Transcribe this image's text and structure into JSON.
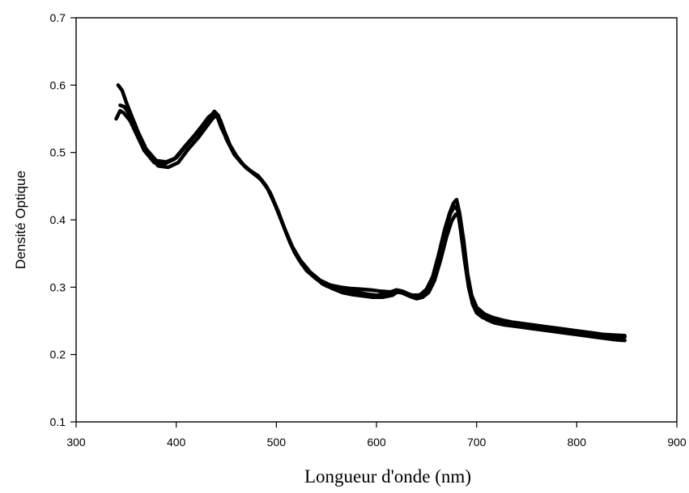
{
  "chart_data": {
    "type": "line",
    "title": "",
    "xlabel": "Longueur d'onde (nm)",
    "ylabel": "Densité Optique",
    "xlim": [
      300,
      900
    ],
    "ylim": [
      0.1,
      0.7
    ],
    "x_ticks": [
      "300",
      "400",
      "500",
      "600",
      "700",
      "800",
      "900"
    ],
    "y_ticks": [
      "0.1",
      "0.2",
      "0.3",
      "0.4",
      "0.5",
      "0.6",
      "0.7"
    ],
    "grid": false,
    "legend": "none",
    "line_color": "#000000",
    "series": [
      {
        "x": [
          342,
          346,
          350,
          356,
          362,
          370,
          380,
          390,
          400,
          410,
          420,
          428,
          434,
          438,
          442,
          446,
          450,
          458,
          466,
          474,
          482,
          490,
          498,
          506,
          514,
          522,
          530,
          540,
          550,
          560,
          570,
          580,
          590,
          600,
          610,
          618,
          624,
          630,
          636,
          642,
          648,
          654,
          660,
          666,
          670,
          674,
          678,
          681,
          684,
          688,
          692,
          696,
          700,
          706,
          712,
          720,
          730,
          740,
          750,
          760,
          770,
          780,
          790,
          800,
          810,
          820,
          830,
          840,
          848
        ],
        "y": [
          0.6,
          0.592,
          0.575,
          0.552,
          0.53,
          0.505,
          0.488,
          0.486,
          0.492,
          0.51,
          0.527,
          0.541,
          0.553,
          0.561,
          0.555,
          0.538,
          0.52,
          0.497,
          0.483,
          0.473,
          0.465,
          0.45,
          0.425,
          0.395,
          0.365,
          0.342,
          0.325,
          0.312,
          0.302,
          0.297,
          0.294,
          0.293,
          0.29,
          0.288,
          0.29,
          0.293,
          0.292,
          0.29,
          0.288,
          0.288,
          0.292,
          0.305,
          0.33,
          0.365,
          0.39,
          0.41,
          0.42,
          0.415,
          0.385,
          0.34,
          0.3,
          0.275,
          0.262,
          0.255,
          0.252,
          0.249,
          0.247,
          0.245,
          0.243,
          0.241,
          0.239,
          0.237,
          0.235,
          0.233,
          0.231,
          0.229,
          0.228,
          0.227,
          0.226
        ]
      },
      {
        "x": [
          344,
          348,
          352,
          358,
          364,
          372,
          382,
          392,
          402,
          412,
          422,
          430,
          436,
          440,
          444,
          448,
          454,
          462,
          470,
          478,
          486,
          494,
          502,
          510,
          518,
          526,
          536,
          546,
          556,
          566,
          576,
          586,
          596,
          606,
          616,
          622,
          628,
          634,
          640,
          646,
          652,
          658,
          664,
          670,
          675,
          679,
          682,
          686,
          690,
          694,
          698,
          704,
          710,
          718,
          728,
          738,
          748,
          758,
          768,
          778,
          788,
          798,
          808,
          818,
          828,
          838,
          848
        ],
        "y": [
          0.57,
          0.568,
          0.56,
          0.545,
          0.522,
          0.497,
          0.48,
          0.478,
          0.485,
          0.505,
          0.522,
          0.538,
          0.55,
          0.555,
          0.548,
          0.532,
          0.51,
          0.49,
          0.477,
          0.468,
          0.458,
          0.44,
          0.412,
          0.38,
          0.352,
          0.333,
          0.318,
          0.305,
          0.298,
          0.292,
          0.289,
          0.287,
          0.285,
          0.285,
          0.288,
          0.294,
          0.29,
          0.286,
          0.283,
          0.285,
          0.292,
          0.31,
          0.34,
          0.375,
          0.398,
          0.408,
          0.405,
          0.37,
          0.325,
          0.29,
          0.27,
          0.258,
          0.252,
          0.247,
          0.244,
          0.242,
          0.24,
          0.238,
          0.236,
          0.234,
          0.232,
          0.23,
          0.228,
          0.226,
          0.224,
          0.222,
          0.221
        ]
      },
      {
        "x": [
          340,
          344,
          348,
          354,
          360,
          368,
          378,
          388,
          398,
          408,
          418,
          426,
          432,
          437,
          441,
          445,
          452,
          460,
          468,
          476,
          484,
          492,
          500,
          508,
          516,
          524,
          534,
          544,
          554,
          564,
          574,
          584,
          594,
          604,
          614,
          620,
          626,
          632,
          638,
          644,
          650,
          656,
          662,
          668,
          673,
          677,
          680,
          683,
          687,
          691,
          695,
          700,
          708,
          716,
          726,
          736,
          746,
          756,
          766,
          776,
          786,
          796,
          806,
          816,
          826,
          836,
          848
        ],
        "y": [
          0.55,
          0.562,
          0.558,
          0.547,
          0.528,
          0.503,
          0.485,
          0.483,
          0.49,
          0.508,
          0.525,
          0.54,
          0.552,
          0.558,
          0.553,
          0.537,
          0.515,
          0.495,
          0.48,
          0.47,
          0.461,
          0.445,
          0.418,
          0.388,
          0.36,
          0.34,
          0.322,
          0.31,
          0.303,
          0.3,
          0.298,
          0.297,
          0.296,
          0.294,
          0.293,
          0.296,
          0.294,
          0.29,
          0.287,
          0.289,
          0.297,
          0.315,
          0.348,
          0.385,
          0.41,
          0.425,
          0.43,
          0.41,
          0.37,
          0.32,
          0.288,
          0.27,
          0.26,
          0.255,
          0.251,
          0.248,
          0.246,
          0.244,
          0.242,
          0.24,
          0.238,
          0.236,
          0.234,
          0.232,
          0.23,
          0.229,
          0.228
        ]
      }
    ]
  }
}
